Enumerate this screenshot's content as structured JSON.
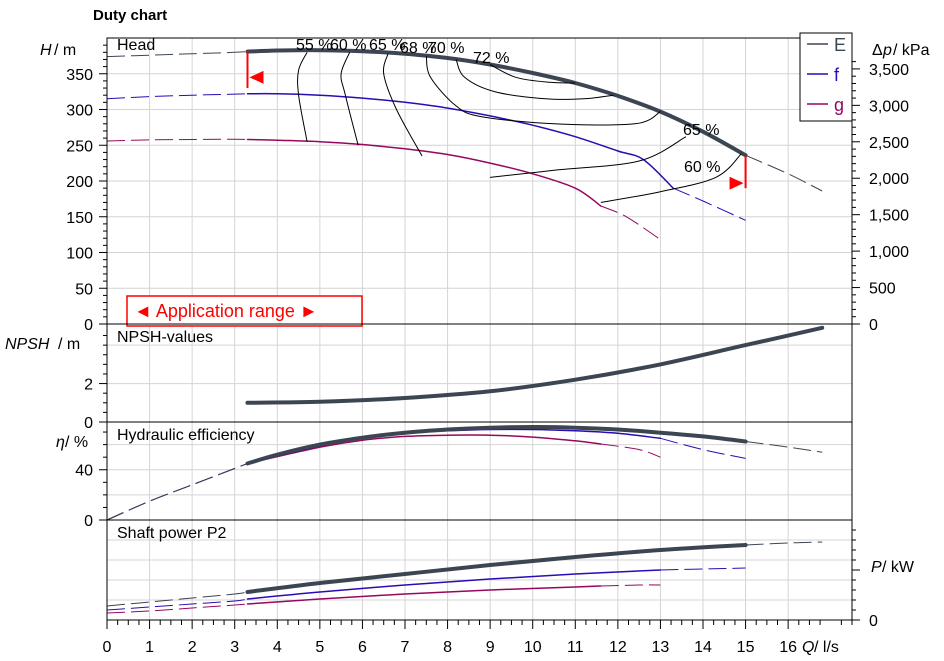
{
  "title": "Duty chart",
  "x_axis": {
    "label_text": "Q / l/s",
    "range": [
      0,
      17.5
    ],
    "ticks": [
      0,
      1,
      2,
      3,
      4,
      5,
      6,
      7,
      8,
      9,
      10,
      11,
      12,
      13,
      14,
      15,
      16
    ],
    "minor_step": 0.25
  },
  "legend": [
    {
      "label": "E",
      "color": "#3c4652"
    },
    {
      "label": "f",
      "color": "#2a0bb5"
    },
    {
      "label": "g",
      "color": "#96085f"
    }
  ],
  "colors": {
    "E": "#3c4652",
    "f": "#2a0bb5",
    "g": "#96085f",
    "efficiency_lines": "#000000",
    "application_range": "#ff0000",
    "grid": "#d4d4d4"
  },
  "application_range": {
    "label": "◄ Application range ►",
    "q_min": 3.3,
    "q_max": 15.0
  },
  "chart_data": [
    {
      "type": "line",
      "panel": "head",
      "label": "Head",
      "ylabel": "H / m",
      "ylabel_var": "H",
      "ylabel_unit": " / m",
      "ylim": [
        0,
        400
      ],
      "yticks": [
        0,
        50,
        100,
        150,
        200,
        250,
        300,
        350
      ],
      "y2label": "Δp / kPa",
      "y2label_var": "p",
      "y2label_unit": " / kPa",
      "y2ticks": [
        {
          "v": 0,
          "label": "0"
        },
        {
          "v": 500,
          "label": "500"
        },
        {
          "v": 1000,
          "label": "1,000"
        },
        {
          "v": 1500,
          "label": "1,500"
        },
        {
          "v": 2000,
          "label": "2,000"
        },
        {
          "v": 2500,
          "label": "2,500"
        },
        {
          "v": 3000,
          "label": "3,000"
        },
        {
          "v": 3500,
          "label": "3,500"
        }
      ],
      "y2_per_y": 9.81,
      "series": [
        {
          "name": "E",
          "solid": [
            [
              3.3,
              381
            ],
            [
              4,
              382.5
            ],
            [
              5,
              383
            ],
            [
              6,
              381.5
            ],
            [
              7,
              378
            ],
            [
              8,
              372
            ],
            [
              9,
              363
            ],
            [
              10,
              351
            ],
            [
              11,
              337
            ],
            [
              12,
              319
            ],
            [
              13,
              297
            ],
            [
              14,
              269
            ],
            [
              15,
              236
            ]
          ],
          "dashed": [
            [
              0,
              374
            ],
            [
              1,
              376
            ],
            [
              2,
              378
            ],
            [
              3,
              380
            ],
            [
              3.3,
              381
            ],
            [
              15,
              236
            ],
            [
              16,
              210
            ],
            [
              16.8,
              186
            ]
          ]
        },
        {
          "name": "f",
          "solid": [
            [
              3.3,
              322
            ],
            [
              4,
              322
            ],
            [
              5,
              320
            ],
            [
              6,
              316
            ],
            [
              7,
              310
            ],
            [
              8,
              302
            ],
            [
              9,
              291
            ],
            [
              10,
              278
            ],
            [
              11,
              262
            ],
            [
              12,
              242
            ],
            [
              12.6,
              230
            ],
            [
              13.3,
              190
            ]
          ],
          "dashed": [
            [
              0,
              315
            ],
            [
              1,
              318
            ],
            [
              2,
              320
            ],
            [
              3,
              321.5
            ],
            [
              3.3,
              322
            ],
            [
              13.3,
              190
            ],
            [
              14,
              172
            ],
            [
              15,
              145
            ]
          ]
        },
        {
          "name": "g",
          "solid": [
            [
              3.3,
              258
            ],
            [
              4,
              257
            ],
            [
              5,
              255
            ],
            [
              6,
              251
            ],
            [
              7,
              245
            ],
            [
              8,
              237
            ],
            [
              9,
              225
            ],
            [
              10,
              210
            ],
            [
              11,
              190
            ],
            [
              11.6,
              165
            ]
          ],
          "dashed": [
            [
              0,
              256
            ],
            [
              1,
              257.5
            ],
            [
              2,
              258
            ],
            [
              3,
              258.5
            ],
            [
              3.3,
              258
            ],
            [
              11.6,
              165
            ],
            [
              12.2,
              150
            ],
            [
              13,
              118
            ]
          ]
        }
      ],
      "efficiency_contours": [
        {
          "label": "55 %",
          "points": [
            [
              4.7,
              380
            ],
            [
              4.5,
              355
            ],
            [
              4.5,
              320
            ],
            [
              4.7,
              255
            ]
          ]
        },
        {
          "label": "60 %",
          "points": [
            [
              5.7,
              380
            ],
            [
              5.5,
              350
            ],
            [
              5.6,
              320
            ],
            [
              5.9,
              250
            ]
          ]
        },
        {
          "label": "65 %",
          "points": [
            [
              6.6,
              378
            ],
            [
              6.5,
              350
            ],
            [
              6.8,
              300
            ],
            [
              7.4,
              235
            ]
          ]
        },
        {
          "label": "68 %",
          "points": [
            [
              7.5,
              375
            ],
            [
              7.6,
              345
            ],
            [
              8.2,
              305
            ],
            [
              8.8,
              290
            ],
            [
              10.5,
              280
            ],
            [
              12.4,
              280
            ],
            [
              13.0,
              297
            ]
          ]
        },
        {
          "label": "70 %",
          "points": [
            [
              8.2,
              370
            ],
            [
              8.4,
              345
            ],
            [
              9.1,
              325
            ],
            [
              10.3,
              315
            ],
            [
              11.2,
              315
            ],
            [
              11.9,
              320
            ]
          ]
        },
        {
          "label": "72 %",
          "points": [
            [
              9.0,
              363
            ],
            [
              9.6,
              345
            ],
            [
              10.4,
              338
            ],
            [
              11.0,
              337
            ]
          ]
        },
        {
          "label": "65 %",
          "points": [
            [
              9.0,
              205
            ],
            [
              10.5,
              215
            ],
            [
              12.5,
              228
            ],
            [
              13.6,
              262
            ]
          ]
        },
        {
          "label": "60 %",
          "points": [
            [
              11.6,
              170
            ],
            [
              13.0,
              185
            ],
            [
              14.3,
              205
            ],
            [
              14.9,
              238
            ]
          ]
        }
      ]
    },
    {
      "type": "line",
      "panel": "npsh",
      "label": "NPSH-values",
      "ylabel": "NPSH / m",
      "ylabel_var": "NPSH",
      "ylabel_unit": " / m",
      "ylim": [
        0,
        5.1
      ],
      "yticks": [
        0,
        2
      ],
      "series": [
        {
          "name": "E",
          "solid": [
            [
              3.3,
              1.0
            ],
            [
              5,
              1.05
            ],
            [
              7,
              1.25
            ],
            [
              9,
              1.6
            ],
            [
              11,
              2.2
            ],
            [
              13,
              3.0
            ],
            [
              15,
              4.0
            ],
            [
              16.8,
              4.9
            ]
          ],
          "dashed": []
        }
      ]
    },
    {
      "type": "line",
      "panel": "efficiency",
      "label": "Hydraulic efficiency",
      "ylabel": "η / %",
      "ylabel_var": "η",
      "ylabel_unit": " / %",
      "ylim": [
        0,
        78
      ],
      "yticks": [
        0,
        40
      ],
      "series": [
        {
          "name": "E",
          "solid": [
            [
              3.3,
              45
            ],
            [
              4,
              52
            ],
            [
              5,
              60
            ],
            [
              6,
              65.5
            ],
            [
              7,
              69.5
            ],
            [
              8,
              72
            ],
            [
              9,
              73.5
            ],
            [
              10,
              74
            ],
            [
              11,
              73.5
            ],
            [
              12,
              72
            ],
            [
              13,
              69.5
            ],
            [
              14,
              66.5
            ],
            [
              15,
              62.5
            ]
          ],
          "dashed": [
            [
              0,
              0
            ],
            [
              1,
              15
            ],
            [
              2,
              28
            ],
            [
              3,
              41
            ],
            [
              3.3,
              45
            ],
            [
              15,
              62.5
            ],
            [
              16,
              58
            ],
            [
              16.8,
              54
            ]
          ]
        },
        {
          "name": "f",
          "solid": [
            [
              3.3,
              45
            ],
            [
              5,
              59
            ],
            [
              6,
              65
            ],
            [
              7,
              69
            ],
            [
              8,
              71
            ],
            [
              9,
              72
            ],
            [
              10,
              72
            ],
            [
              11,
              71
            ],
            [
              12,
              69
            ],
            [
              13,
              65
            ]
          ],
          "dashed": [
            [
              0,
              0
            ],
            [
              1,
              15
            ],
            [
              2,
              28
            ],
            [
              3,
              41
            ],
            [
              3.3,
              45
            ],
            [
              13,
              65
            ],
            [
              14,
              56
            ],
            [
              15,
              49
            ]
          ]
        },
        {
          "name": "g",
          "solid": [
            [
              3.3,
              45
            ],
            [
              5,
              58
            ],
            [
              6,
              63.5
            ],
            [
              7,
              66.5
            ],
            [
              8,
              67.5
            ],
            [
              9,
              67.5
            ],
            [
              10,
              66
            ],
            [
              11,
              63
            ],
            [
              11.6,
              60.5
            ]
          ],
          "dashed": [
            [
              0,
              0
            ],
            [
              1,
              15
            ],
            [
              2,
              28
            ],
            [
              3,
              41
            ],
            [
              3.3,
              45
            ],
            [
              11.6,
              60.5
            ],
            [
              12.5,
              56
            ],
            [
              13,
              50
            ]
          ]
        }
      ]
    },
    {
      "type": "line",
      "panel": "power",
      "label": "Shaft power P2",
      "ylabel": "P / kW",
      "ylabel_var": "P",
      "ylabel_unit": " / kW",
      "ylim": [
        0,
        100
      ],
      "y2ticks": [
        {
          "v": 0,
          "label": "0"
        }
      ],
      "series": [
        {
          "name": "E",
          "solid": [
            [
              3.3,
              28
            ],
            [
              5,
              37
            ],
            [
              7,
              46
            ],
            [
              9,
              55
            ],
            [
              11,
              63
            ],
            [
              13,
              70
            ],
            [
              15,
              75
            ]
          ],
          "dashed": [
            [
              0,
              14
            ],
            [
              1,
              18
            ],
            [
              2,
              22
            ],
            [
              3,
              26
            ],
            [
              3.3,
              28
            ],
            [
              15,
              75
            ],
            [
              16,
              77
            ],
            [
              16.8,
              78
            ]
          ]
        },
        {
          "name": "f",
          "solid": [
            [
              3.3,
              21
            ],
            [
              5,
              28
            ],
            [
              7,
              35
            ],
            [
              9,
              41
            ],
            [
              11,
              46
            ],
            [
              13,
              50
            ]
          ],
          "dashed": [
            [
              0,
              10
            ],
            [
              1,
              13
            ],
            [
              2,
              16
            ],
            [
              3,
              19
            ],
            [
              3.3,
              21
            ],
            [
              13,
              50
            ],
            [
              14,
              51
            ],
            [
              15,
              52
            ]
          ]
        },
        {
          "name": "g",
          "solid": [
            [
              3.3,
              16
            ],
            [
              5,
              21
            ],
            [
              7,
              26
            ],
            [
              9,
              30
            ],
            [
              11,
              33
            ],
            [
              11.6,
              34
            ]
          ],
          "dashed": [
            [
              0,
              7
            ],
            [
              1,
              9
            ],
            [
              2,
              12
            ],
            [
              3,
              15
            ],
            [
              3.3,
              16
            ],
            [
              11.6,
              34
            ],
            [
              12.5,
              35
            ],
            [
              13,
              35
            ]
          ]
        }
      ]
    }
  ]
}
